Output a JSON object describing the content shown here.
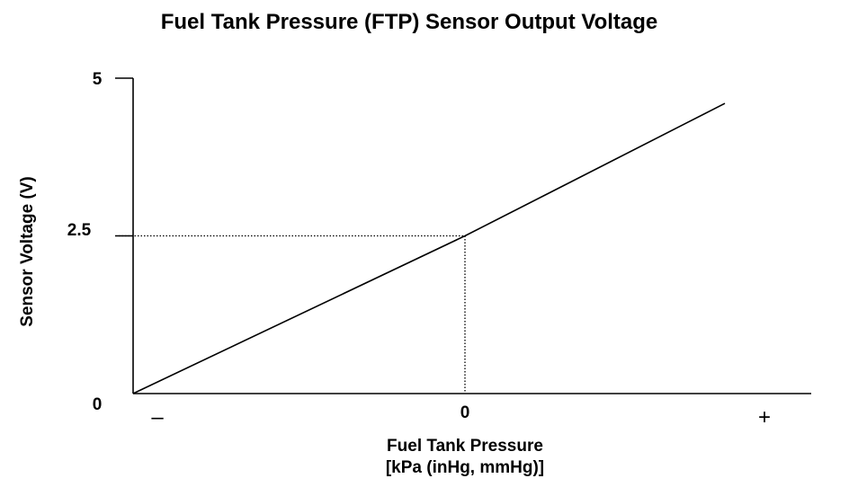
{
  "chart_data": {
    "type": "line",
    "title": "Fuel Tank Pressure (FTP) Sensor Output Voltage",
    "xlabel": "Fuel Tank Pressure",
    "xlabel_units": "[kPa (inHg, mmHg)]",
    "ylabel": "Sensor Voltage (V)",
    "x_tick_labels": [
      "–",
      "0",
      "+"
    ],
    "y_tick_labels": [
      "0",
      "2.5",
      "5"
    ],
    "ylim": [
      0,
      5
    ],
    "grid": false,
    "series": [
      {
        "x": [
          "–",
          "0",
          "+"
        ],
        "values": [
          0,
          2.5,
          4.6
        ],
        "color": "#000000"
      }
    ],
    "reference_point": {
      "x": "0",
      "y": 2.5
    }
  }
}
